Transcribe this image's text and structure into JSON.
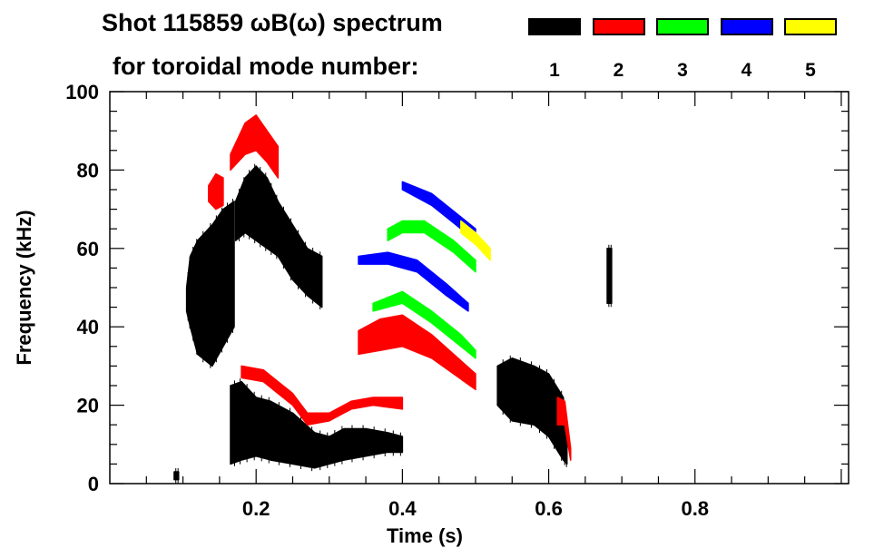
{
  "title_line1": "Shot 115859 ωB(ω) spectrum",
  "title_line2": "for toroidal mode number:",
  "legend": [
    {
      "label": "1",
      "color": "#000000"
    },
    {
      "label": "2",
      "color": "#ff0000"
    },
    {
      "label": "3",
      "color": "#00ff00"
    },
    {
      "label": "4",
      "color": "#0000ff"
    },
    {
      "label": "5",
      "color": "#ffff00"
    }
  ],
  "chart_data": {
    "type": "heatmap",
    "title": "Shot 115859 ωB(ω) spectrum for toroidal mode number",
    "xlabel": "Time (s)",
    "ylabel": "Frequency (kHz)",
    "xlim": [
      0,
      1.01
    ],
    "ylim": [
      0,
      100
    ],
    "xticks": [
      0.2,
      0.4,
      0.6,
      0.8
    ],
    "xtick_labels": [
      "0.2",
      "0.4",
      "0.6",
      "0.8"
    ],
    "yticks": [
      0,
      20,
      40,
      60,
      80,
      100
    ],
    "ytick_labels": [
      "0",
      "20",
      "40",
      "60",
      "80",
      "100"
    ],
    "features": [
      {
        "mode": 1,
        "points": [
          [
            0.105,
            44,
            50
          ],
          [
            0.11,
            40,
            58
          ],
          [
            0.12,
            33,
            62
          ],
          [
            0.14,
            30,
            66
          ],
          [
            0.155,
            35,
            70
          ],
          [
            0.17,
            40,
            72
          ]
        ]
      },
      {
        "mode": 1,
        "points": [
          [
            0.172,
            62,
            72
          ],
          [
            0.185,
            64,
            78
          ],
          [
            0.2,
            62,
            81
          ],
          [
            0.215,
            60,
            78
          ],
          [
            0.23,
            58,
            72
          ],
          [
            0.25,
            52,
            66
          ],
          [
            0.27,
            48,
            60
          ],
          [
            0.29,
            45,
            58
          ]
        ]
      },
      {
        "mode": 1,
        "points": [
          [
            0.165,
            5,
            25
          ],
          [
            0.18,
            6,
            26
          ],
          [
            0.2,
            7,
            22
          ],
          [
            0.22,
            6,
            21
          ],
          [
            0.25,
            5,
            18
          ],
          [
            0.28,
            4,
            13
          ],
          [
            0.3,
            5,
            12
          ],
          [
            0.32,
            6,
            14
          ],
          [
            0.35,
            7,
            14
          ],
          [
            0.38,
            8,
            13
          ],
          [
            0.4,
            8,
            12
          ]
        ]
      },
      {
        "mode": 1,
        "points": [
          [
            0.53,
            20,
            30
          ],
          [
            0.55,
            16,
            32
          ],
          [
            0.58,
            15,
            30
          ],
          [
            0.6,
            12,
            28
          ],
          [
            0.62,
            6,
            22
          ],
          [
            0.625,
            5,
            10
          ]
        ]
      },
      {
        "mode": 1,
        "points": [
          [
            0.68,
            46,
            60
          ],
          [
            0.686,
            46,
            60
          ]
        ]
      },
      {
        "mode": 1,
        "points": [
          [
            0.088,
            1,
            3
          ],
          [
            0.094,
            1,
            3
          ]
        ]
      },
      {
        "mode": 2,
        "points": [
          [
            0.135,
            72,
            76
          ],
          [
            0.145,
            70,
            79
          ],
          [
            0.155,
            71,
            78
          ]
        ]
      },
      {
        "mode": 2,
        "points": [
          [
            0.165,
            80,
            84
          ],
          [
            0.185,
            84,
            92
          ],
          [
            0.2,
            85,
            94
          ],
          [
            0.215,
            82,
            90
          ],
          [
            0.23,
            78,
            86
          ]
        ]
      },
      {
        "mode": 2,
        "points": [
          [
            0.18,
            27,
            30
          ],
          [
            0.21,
            26,
            29
          ],
          [
            0.23,
            23,
            26
          ],
          [
            0.25,
            20,
            23
          ],
          [
            0.27,
            15,
            18
          ],
          [
            0.3,
            16,
            18
          ],
          [
            0.33,
            19,
            21
          ],
          [
            0.36,
            20,
            22
          ],
          [
            0.4,
            19,
            22
          ]
        ]
      },
      {
        "mode": 2,
        "points": [
          [
            0.34,
            33,
            39
          ],
          [
            0.37,
            34,
            42
          ],
          [
            0.4,
            35,
            43
          ],
          [
            0.44,
            32,
            38
          ],
          [
            0.47,
            28,
            33
          ],
          [
            0.5,
            24,
            28
          ]
        ]
      },
      {
        "mode": 2,
        "points": [
          [
            0.612,
            15,
            22
          ],
          [
            0.622,
            15,
            21
          ],
          [
            0.63,
            6,
            9
          ]
        ]
      },
      {
        "mode": 3,
        "points": [
          [
            0.36,
            44,
            46
          ],
          [
            0.4,
            46,
            49
          ],
          [
            0.44,
            41,
            44
          ],
          [
            0.48,
            35,
            38
          ],
          [
            0.5,
            32,
            34
          ]
        ]
      },
      {
        "mode": 3,
        "points": [
          [
            0.38,
            62,
            65
          ],
          [
            0.4,
            64,
            67
          ],
          [
            0.43,
            64,
            67
          ],
          [
            0.47,
            59,
            62
          ],
          [
            0.5,
            54,
            57
          ]
        ]
      },
      {
        "mode": 4,
        "points": [
          [
            0.34,
            56,
            58
          ],
          [
            0.38,
            56,
            59
          ],
          [
            0.42,
            54,
            57
          ],
          [
            0.46,
            48,
            51
          ],
          [
            0.49,
            44,
            46
          ]
        ]
      },
      {
        "mode": 4,
        "points": [
          [
            0.4,
            75,
            77
          ],
          [
            0.44,
            71,
            74
          ],
          [
            0.48,
            65,
            68
          ],
          [
            0.5,
            62,
            65
          ]
        ]
      },
      {
        "mode": 5,
        "points": [
          [
            0.48,
            64,
            67
          ],
          [
            0.5,
            61,
            64
          ],
          [
            0.52,
            57,
            60
          ]
        ]
      }
    ]
  }
}
